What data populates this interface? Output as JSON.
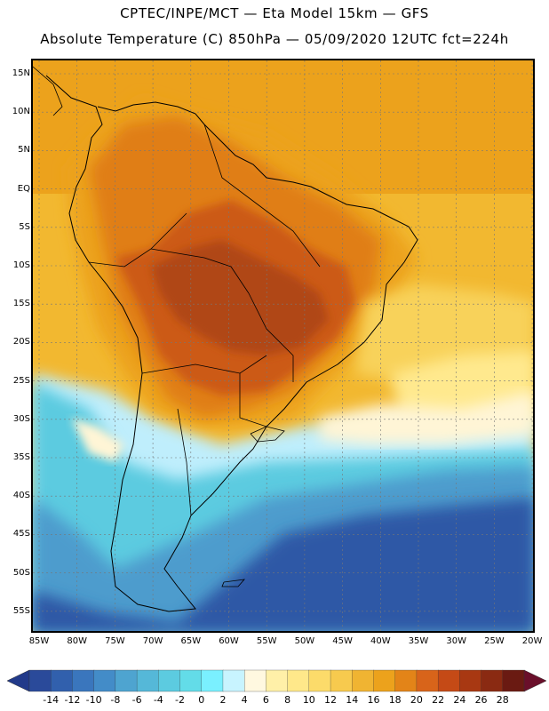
{
  "title": {
    "line1": "CPTEC/INPE/MCT —  Eta Model 15km — GFS",
    "line2": "Absolute Temperature (C) 850hPa — 05/09/2020 12UTC fct=224h"
  },
  "lat_labels": [
    "15N",
    "10N",
    "5N",
    "EQ",
    "5S",
    "10S",
    "15S",
    "20S",
    "25S",
    "30S",
    "35S",
    "40S",
    "45S",
    "50S",
    "55S"
  ],
  "lon_labels": [
    "85W",
    "80W",
    "75W",
    "70W",
    "65W",
    "60W",
    "55W",
    "50W",
    "45W",
    "40W",
    "35W",
    "30W",
    "25W",
    "20W"
  ],
  "colorbar": {
    "labels": [
      "-14",
      "-12",
      "-10",
      "-8",
      "-6",
      "-4",
      "-2",
      "0",
      "2",
      "4",
      "6",
      "8",
      "10",
      "12",
      "14",
      "16",
      "18",
      "20",
      "22",
      "24",
      "26",
      "28"
    ],
    "colors": [
      "#2a4a9a",
      "#3160ad",
      "#3a76bd",
      "#438cc8",
      "#4ea4d0",
      "#55b8d8",
      "#5ccbe0",
      "#63dce8",
      "#7af0ff",
      "#c8f4ff",
      "#fff8e0",
      "#fff0a8",
      "#ffe88a",
      "#fcdb6a",
      "#f7ca4e",
      "#f0b432",
      "#eca21c",
      "#e38418",
      "#d8641a",
      "#c54a16",
      "#a83812",
      "#8a2a12",
      "#6a1a12"
    ],
    "under_color": "#223a8a",
    "over_color": "#6a0f2a"
  },
  "map_colors": {
    "deep_ocean_south": "#2d58a6",
    "cold_mid": "#4d9ccd",
    "cool_cyan": "#5ccbe0",
    "pale_cyan": "#bfeefc",
    "cream": "#fff5d6",
    "light_yellow": "#ffe98e",
    "yellow": "#f8d25a",
    "warm_yellow": "#f2b830",
    "orange": "#eca21c",
    "dark_orange": "#e07e18",
    "red_orange": "#cc5a18",
    "brown": "#b04614",
    "coast": "#000000"
  }
}
